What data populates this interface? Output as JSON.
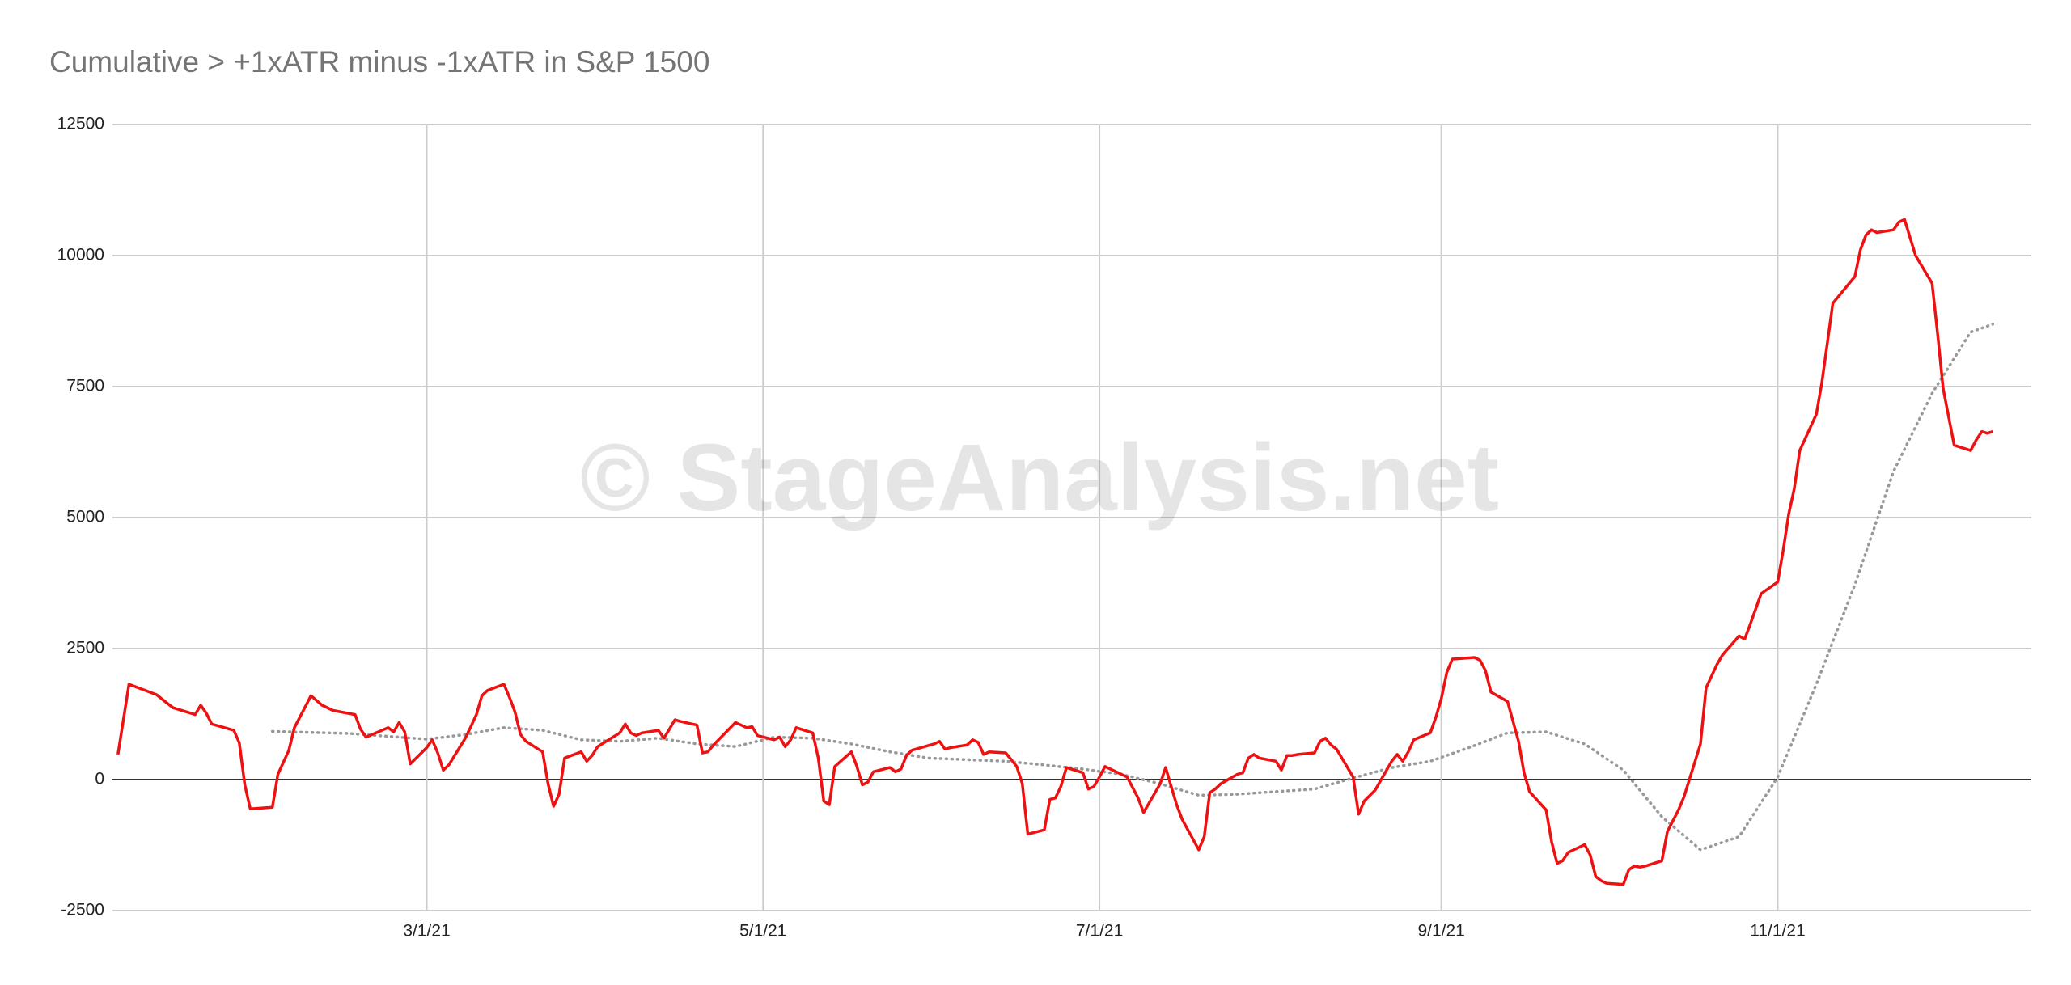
{
  "chart_data": {
    "type": "line",
    "title": "Cumulative > +1xATR minus -1xATR in S&P 1500",
    "watermark": "© StageAnalysis.net",
    "xlim": [
      "1/3/21",
      "12/17/21"
    ],
    "xticks": [
      "3/1/21",
      "5/1/21",
      "7/1/21",
      "9/1/21",
      "11/1/21"
    ],
    "ylim": [
      -2500,
      12500
    ],
    "yticks": [
      -2500,
      0,
      2500,
      5000,
      7500,
      10000,
      12500
    ],
    "grid": true,
    "series": [
      {
        "color": "#ee1111",
        "dash": false,
        "x": [
          "1/4/21",
          "1/6/21",
          "1/11/21",
          "1/13/21",
          "1/14/21",
          "1/18/21",
          "1/19/21",
          "1/20/21",
          "1/21/21",
          "1/25/21",
          "1/26/21",
          "1/27/21",
          "1/28/21",
          "2/1/21",
          "2/2/21",
          "2/4/21",
          "2/5/21",
          "2/8/21",
          "2/10/21",
          "2/12/21",
          "2/16/21",
          "2/17/21",
          "2/18/21",
          "2/22/21",
          "2/23/21",
          "2/24/21",
          "2/25/21",
          "2/26/21",
          "3/1/21",
          "3/2/21",
          "3/3/21",
          "3/4/21",
          "3/5/21",
          "3/8/21",
          "3/9/21",
          "3/10/21",
          "3/11/21",
          "3/12/21",
          "3/15/21",
          "3/16/21",
          "3/17/21",
          "3/18/21",
          "3/19/21",
          "3/22/21",
          "3/23/21",
          "3/24/21",
          "3/25/21",
          "3/26/21",
          "3/29/21",
          "3/30/21",
          "3/31/21",
          "4/1/21",
          "4/5/21",
          "4/6/21",
          "4/7/21",
          "4/8/21",
          "4/9/21",
          "4/12/21",
          "4/13/21",
          "4/14/21",
          "4/15/21",
          "4/16/21",
          "4/19/21",
          "4/20/21",
          "4/21/21",
          "4/22/21",
          "4/26/21",
          "4/27/21",
          "4/28/21",
          "4/29/21",
          "4/30/21",
          "5/3/21",
          "5/4/21",
          "5/5/21",
          "5/6/21",
          "5/7/21",
          "5/10/21",
          "5/11/21",
          "5/12/21",
          "5/13/21",
          "5/14/21",
          "5/17/21",
          "5/18/21",
          "5/19/21",
          "5/20/21",
          "5/21/21",
          "5/24/21",
          "5/25/21",
          "5/26/21",
          "5/27/21",
          "5/28/21",
          "6/1/21",
          "6/2/21",
          "6/3/21",
          "6/4/21",
          "6/7/21",
          "6/8/21",
          "6/9/21",
          "6/10/21",
          "6/11/21",
          "6/14/21",
          "6/15/21",
          "6/16/21",
          "6/17/21",
          "6/18/21",
          "6/21/21",
          "6/22/21",
          "6/23/21",
          "6/24/21",
          "6/25/21",
          "6/28/21",
          "6/29/21",
          "6/30/21",
          "7/1/21",
          "7/2/21",
          "7/6/21",
          "7/7/21",
          "7/8/21",
          "7/9/21",
          "7/12/21",
          "7/13/21",
          "7/14/21",
          "7/15/21",
          "7/16/21",
          "7/19/21",
          "7/20/21",
          "7/21/21",
          "7/22/21",
          "7/23/21",
          "7/26/21",
          "7/27/21",
          "7/28/21",
          "7/29/21",
          "7/30/21",
          "8/2/21",
          "8/3/21",
          "8/4/21",
          "8/5/21",
          "8/6/21",
          "8/9/21",
          "8/10/21",
          "8/11/21",
          "8/12/21",
          "8/13/21",
          "8/16/21",
          "8/17/21",
          "8/18/21",
          "8/20/21",
          "8/23/21",
          "8/24/21",
          "8/25/21",
          "8/26/21",
          "8/27/21",
          "8/30/21",
          "8/31/21",
          "9/1/21",
          "9/2/21",
          "9/3/21",
          "9/7/21",
          "9/8/21",
          "9/9/21",
          "9/10/21",
          "9/13/21",
          "9/14/21",
          "9/15/21",
          "9/16/21",
          "9/17/21",
          "9/20/21",
          "9/21/21",
          "9/22/21",
          "9/23/21",
          "9/24/21",
          "9/27/21",
          "9/28/21",
          "9/29/21",
          "9/30/21",
          "10/1/21",
          "10/4/21",
          "10/5/21",
          "10/6/21",
          "10/7/21",
          "10/8/21",
          "10/11/21",
          "10/12/21",
          "10/14/21",
          "10/15/21",
          "10/18/21",
          "10/19/21",
          "10/21/21",
          "10/22/21",
          "10/25/21",
          "10/26/21",
          "10/27/21",
          "10/29/21",
          "11/1/21",
          "11/2/21",
          "11/3/21",
          "11/4/21",
          "11/5/21",
          "11/8/21",
          "11/9/21",
          "11/10/21",
          "11/11/21",
          "11/15/21",
          "11/16/21",
          "11/17/21",
          "11/18/21",
          "11/19/21",
          "11/22/21",
          "11/23/21",
          "11/24/21",
          "11/26/21",
          "11/29/21",
          "11/30/21",
          "12/1/21",
          "12/2/21",
          "12/3/21",
          "12/6/21",
          "12/7/21",
          "12/8/21",
          "12/9/21",
          "12/10/21"
        ],
        "values": [
          480,
          1820,
          1620,
          1450,
          1370,
          1240,
          1420,
          1270,
          1060,
          940,
          700,
          -100,
          -560,
          -530,
          100,
          560,
          990,
          1600,
          1420,
          1320,
          1240,
          960,
          810,
          990,
          910,
          1090,
          910,
          300,
          610,
          760,
          510,
          180,
          280,
          790,
          1010,
          1240,
          1600,
          1700,
          1820,
          1570,
          1290,
          860,
          730,
          530,
          -80,
          -510,
          -280,
          410,
          530,
          350,
          460,
          630,
          890,
          1060,
          890,
          840,
          890,
          940,
          790,
          960,
          1140,
          1110,
          1040,
          510,
          530,
          660,
          1090,
          1040,
          990,
          1010,
          840,
          760,
          810,
          630,
          760,
          990,
          890,
          410,
          -410,
          -480,
          250,
          530,
          250,
          -100,
          -50,
          150,
          230,
          150,
          200,
          460,
          560,
          680,
          730,
          580,
          610,
          660,
          760,
          710,
          480,
          530,
          510,
          380,
          250,
          -80,
          -1040,
          -960,
          -380,
          -350,
          -130,
          230,
          130,
          -180,
          -130,
          50,
          250,
          50,
          -150,
          -350,
          -630,
          -80,
          230,
          -130,
          -480,
          -760,
          -1340,
          -1090,
          -250,
          -180,
          -80,
          100,
          130,
          410,
          480,
          410,
          350,
          180,
          460,
          460,
          480,
          510,
          730,
          790,
          660,
          580,
          50,
          -660,
          -410,
          -200,
          350,
          480,
          350,
          530,
          760,
          890,
          1190,
          1550,
          2050,
          2300,
          2330,
          2280,
          2080,
          1670,
          1490,
          1110,
          730,
          130,
          -230,
          -580,
          -1190,
          -1600,
          -1550,
          -1390,
          -1240,
          -1440,
          -1850,
          -1930,
          -1980,
          -2000,
          -1720,
          -1650,
          -1670,
          -1650,
          -1550,
          -990,
          -580,
          -330,
          680,
          1750,
          2200,
          2380,
          2740,
          2680,
          2960,
          3550,
          3770,
          4380,
          5070,
          5550,
          6280,
          6970,
          7570,
          8330,
          9090,
          9600,
          10110,
          10390,
          10490,
          10440,
          10490,
          10640,
          10690,
          10000,
          9470,
          8510,
          7470,
          6920,
          6380,
          6280,
          6480,
          6640,
          6610,
          6640
        ]
      },
      {
        "color": "#999999",
        "dash": true,
        "x": [
          "2/1/21",
          "2/15/21",
          "3/1/21",
          "3/8/21",
          "3/15/21",
          "3/22/21",
          "3/29/21",
          "4/5/21",
          "4/12/21",
          "4/19/21",
          "4/26/21",
          "5/3/21",
          "5/10/21",
          "5/17/21",
          "5/24/21",
          "5/31/21",
          "6/7/21",
          "6/14/21",
          "6/21/21",
          "6/28/21",
          "7/5/21",
          "7/12/21",
          "7/19/21",
          "7/26/21",
          "8/2/21",
          "8/9/21",
          "8/16/21",
          "8/23/21",
          "8/30/21",
          "9/6/21",
          "9/13/21",
          "9/20/21",
          "9/27/21",
          "10/4/21",
          "10/11/21",
          "10/18/21",
          "10/25/21",
          "11/1/21",
          "11/8/21",
          "11/15/21",
          "11/22/21",
          "11/29/21",
          "12/6/21",
          "12/10/21"
        ],
        "values": [
          920,
          880,
          770,
          860,
          990,
          940,
          760,
          730,
          790,
          680,
          630,
          810,
          790,
          680,
          530,
          410,
          380,
          350,
          280,
          200,
          100,
          -80,
          -300,
          -280,
          -230,
          -180,
          30,
          230,
          350,
          610,
          890,
          910,
          680,
          180,
          -710,
          -1340,
          -1090,
          50,
          1820,
          3720,
          5880,
          7370,
          8540,
          8690
        ]
      }
    ]
  }
}
